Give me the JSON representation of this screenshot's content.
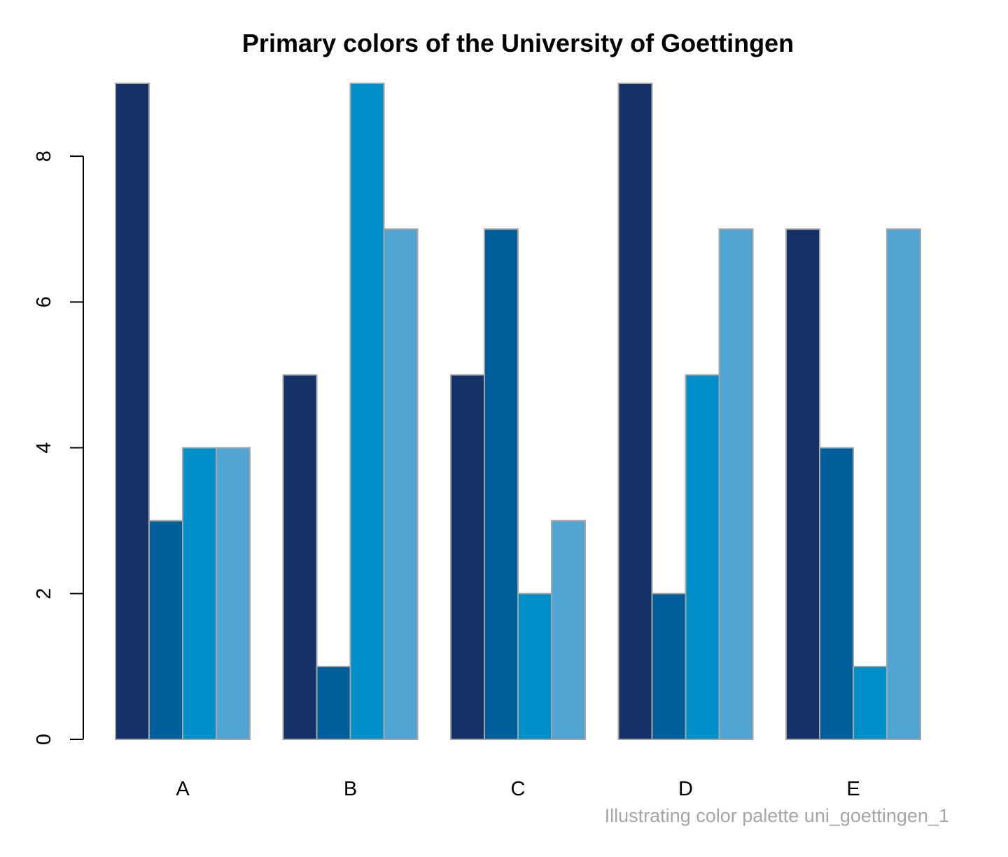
{
  "chart_data": {
    "type": "bar",
    "title": "Primary colors of the University of Goettingen",
    "caption": "Illustrating color palette uni_goettingen_1",
    "categories": [
      "A",
      "B",
      "C",
      "D",
      "E"
    ],
    "series": [
      {
        "values": [
          9,
          5,
          5,
          9,
          7
        ],
        "color": "#153268"
      },
      {
        "values": [
          3,
          1,
          7,
          2,
          4
        ],
        "color": "#005F9B"
      },
      {
        "values": [
          4,
          9,
          2,
          5,
          1
        ],
        "color": "#008FC8"
      },
      {
        "values": [
          4,
          7,
          3,
          7,
          7
        ],
        "color": "#50A5D2"
      }
    ],
    "ylim": [
      0,
      9
    ],
    "yticks": [
      "0",
      "2",
      "4",
      "6",
      "8"
    ],
    "bar_border_color": "#a6a6a6",
    "grid": false,
    "legend": "none"
  }
}
